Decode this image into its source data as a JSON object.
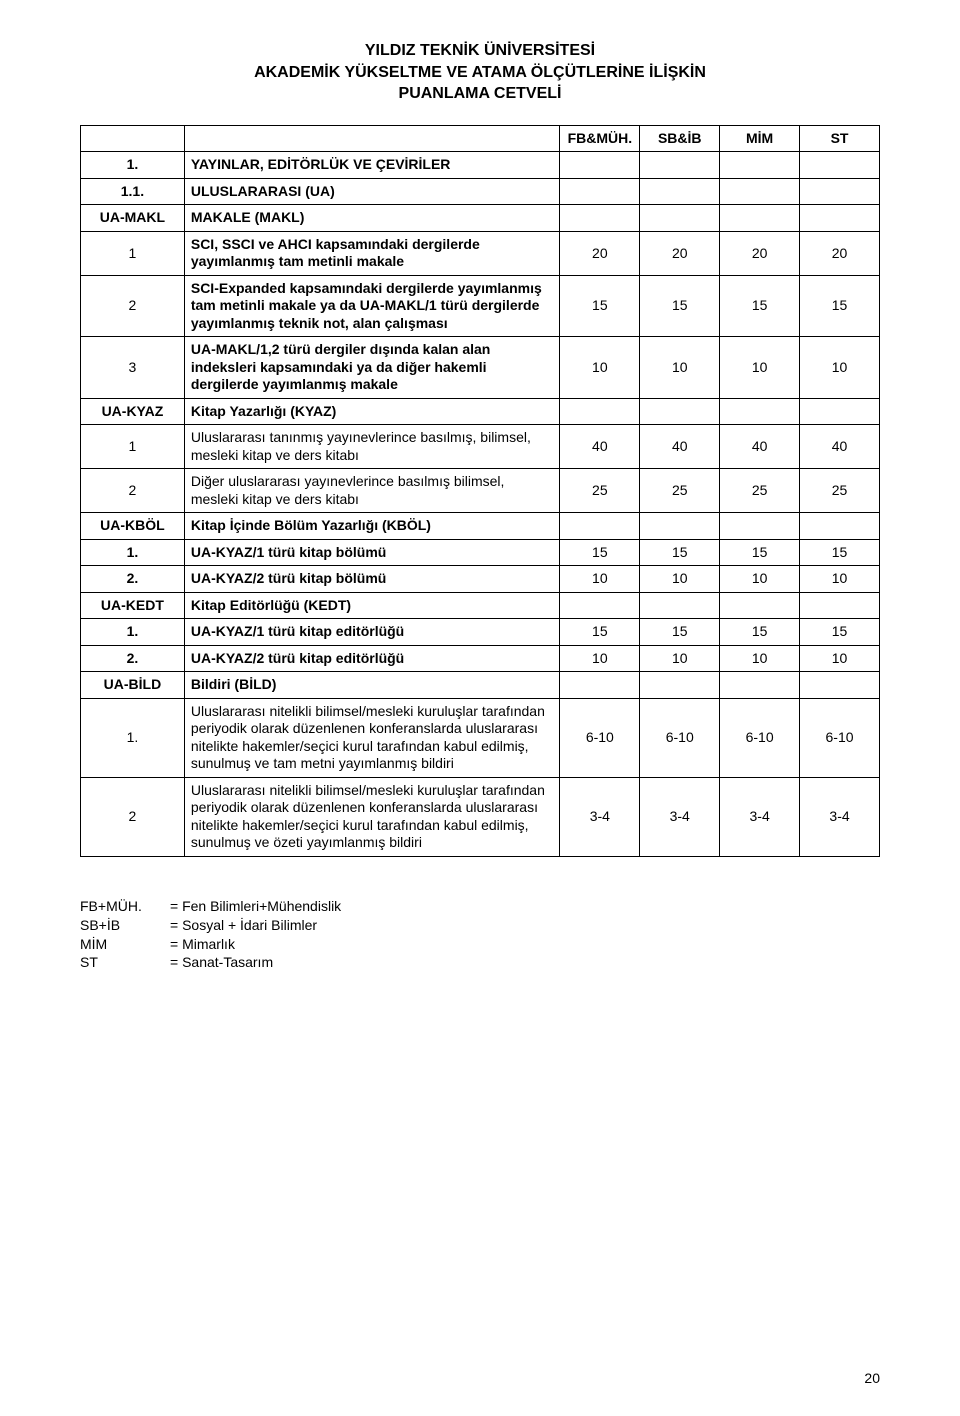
{
  "header": {
    "line1": "YILDIZ TEKNİK ÜNİVERSİTESİ",
    "line2": "AKADEMİK YÜKSELTME VE ATAMA ÖLÇÜTLERİNE İLİŞKİN",
    "line3": "PUANLAMA CETVELİ"
  },
  "columns": {
    "c3": "FB&MÜH.",
    "c4": "SB&İB",
    "c5": "MİM",
    "c6": "ST"
  },
  "rows": {
    "r1": {
      "n": "1.",
      "desc": "YAYINLAR, EDİTÖRLÜK VE ÇEVİRİLER",
      "bold": true
    },
    "r2": {
      "n": "1.1.",
      "desc": "ULUSLARARASI (UA)",
      "bold": true
    },
    "r3": {
      "n": "UA-MAKL",
      "desc": "MAKALE (MAKL)",
      "bold": true
    },
    "r4": {
      "n": "1",
      "desc": "SCI, SSCI ve AHCI kapsamındaki dergilerde yayımlanmış tam metinli makale",
      "v": [
        "20",
        "20",
        "20",
        "20"
      ],
      "descBold": true
    },
    "r5": {
      "n": "2",
      "desc": "SCI-Expanded kapsamındaki dergilerde yayımlanmış tam metinli makale ya da UA-MAKL/1 türü dergilerde yayımlanmış teknik not, alan çalışması",
      "v": [
        "15",
        "15",
        "15",
        "15"
      ],
      "descBold": true
    },
    "r6": {
      "n": "3",
      "desc": "UA-MAKL/1,2 türü dergiler dışında kalan alan indeksleri kapsamındaki ya da diğer hakemli dergilerde yayımlanmış makale",
      "v": [
        "10",
        "10",
        "10",
        "10"
      ],
      "descBold": true
    },
    "r7": {
      "n": "UA-KYAZ",
      "desc": "Kitap Yazarlığı (KYAZ)",
      "bold": true
    },
    "r8": {
      "n": "1",
      "desc": "Uluslararası tanınmış yayınevlerince basılmış, bilimsel, mesleki kitap ve ders kitabı",
      "v": [
        "40",
        "40",
        "40",
        "40"
      ]
    },
    "r9": {
      "n": "2",
      "desc": "Diğer uluslararası yayınevlerince basılmış bilimsel, mesleki kitap ve ders kitabı",
      "v": [
        "25",
        "25",
        "25",
        "25"
      ]
    },
    "r10": {
      "n": "UA-KBÖL",
      "desc": "Kitap İçinde Bölüm Yazarlığı (KBÖL)",
      "bold": true
    },
    "r11": {
      "n": "1.",
      "desc": "UA-KYAZ/1 türü kitap bölümü",
      "v": [
        "15",
        "15",
        "15",
        "15"
      ],
      "bold": true
    },
    "r12": {
      "n": "2.",
      "desc": "UA-KYAZ/2 türü kitap bölümü",
      "v": [
        "10",
        "10",
        "10",
        "10"
      ],
      "bold": true
    },
    "r13": {
      "n": "UA-KEDT",
      "desc": "Kitap Editörlüğü (KEDT)",
      "bold": true
    },
    "r14": {
      "n": "1.",
      "desc": "UA-KYAZ/1 türü kitap editörlüğü",
      "v": [
        "15",
        "15",
        "15",
        "15"
      ],
      "bold": true
    },
    "r15": {
      "n": "2.",
      "desc": "UA-KYAZ/2 türü kitap editörlüğü",
      "v": [
        "10",
        "10",
        "10",
        "10"
      ],
      "bold": true
    },
    "r16": {
      "n": "UA-BİLD",
      "desc": "Bildiri (BİLD)",
      "bold": true
    },
    "r17": {
      "n": "1.",
      "desc": "Uluslararası nitelikli bilimsel/mesleki kuruluşlar tarafından periyodik olarak düzenlenen konferanslarda uluslararası nitelikte hakemler/seçici kurul tarafından kabul edilmiş, sunulmuş ve tam metni yayımlanmış bildiri",
      "v": [
        "6-10",
        "6-10",
        "6-10",
        "6-10"
      ]
    },
    "r18": {
      "n": "2",
      "desc": "Uluslararası nitelikli bilimsel/mesleki kuruluşlar tarafından periyodik olarak düzenlenen konferanslarda uluslararası nitelikte hakemler/seçici kurul tarafından kabul edilmiş, sunulmuş ve özeti yayımlanmış bildiri",
      "v": [
        "3-4",
        "3-4",
        "3-4",
        "3-4"
      ]
    }
  },
  "footnotes": {
    "f1": {
      "k": "FB+MÜH.",
      "v": "= Fen Bilimleri+Mühendislik"
    },
    "f2": {
      "k": "SB+İB",
      "v": "= Sosyal + İdari Bilimler"
    },
    "f3": {
      "k": "MİM",
      "v": "= Mimarlık"
    },
    "f4": {
      "k": "ST",
      "v": "= Sanat-Tasarım"
    }
  },
  "pageNumber": "20"
}
